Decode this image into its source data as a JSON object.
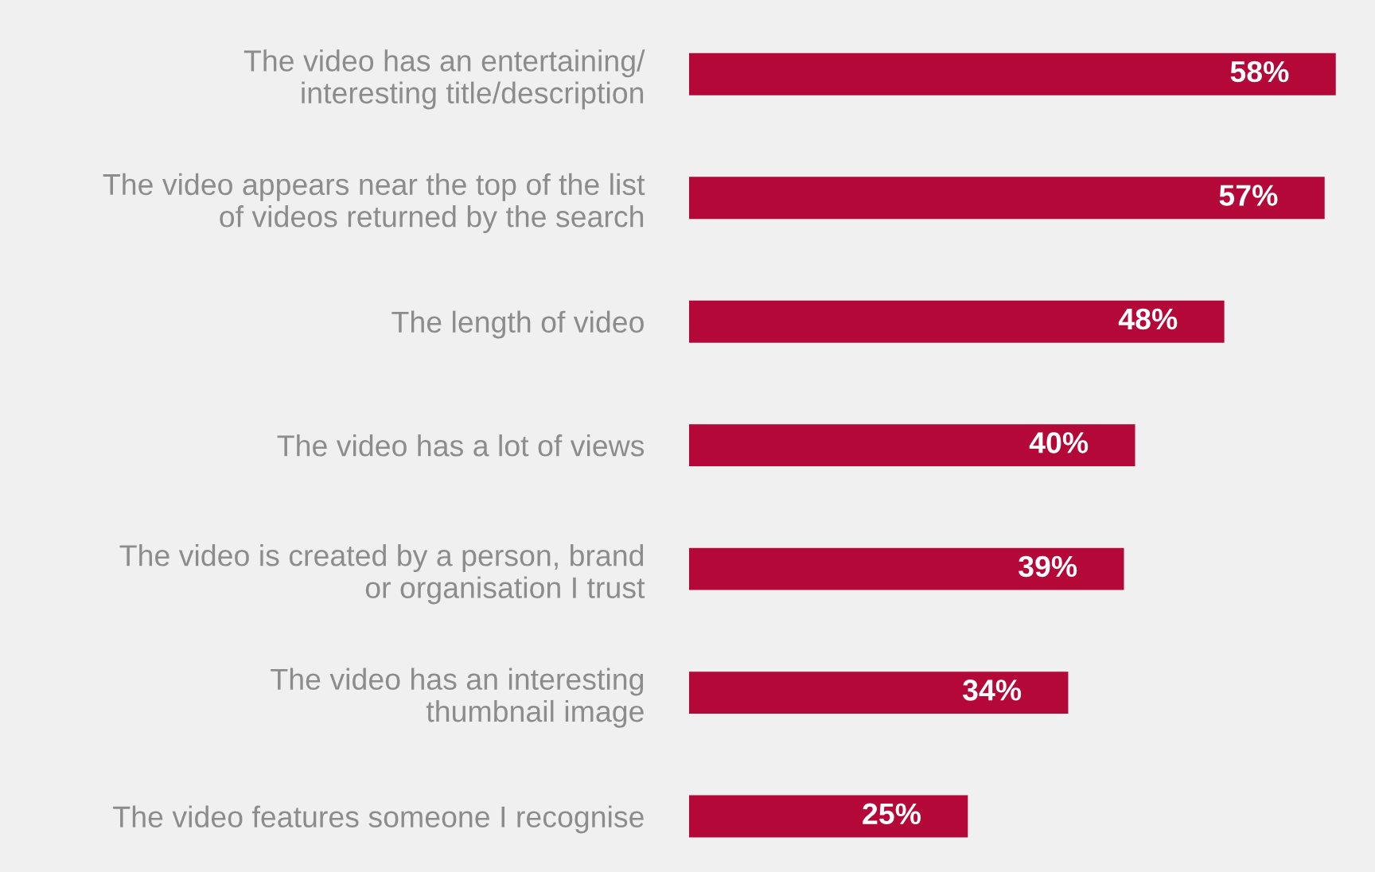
{
  "chart_data": {
    "type": "bar",
    "orientation": "horizontal",
    "categories": [
      "The video has an entertaining/\ninteresting title/description",
      "The video appears near the top of the list\nof videos returned by the search",
      "The length of video",
      "The video has a lot of views",
      "The video is created by a person, brand\nor organisation I trust",
      "The video has an interesting\nthumbnail image",
      "The video features someone I recognise"
    ],
    "values": [
      58,
      57,
      48,
      40,
      39,
      34,
      25
    ],
    "value_labels": [
      "58%",
      "57%",
      "48%",
      "40%",
      "39%",
      "34%",
      "25%"
    ],
    "color": "#b30838",
    "grid": false,
    "legend": false
  }
}
